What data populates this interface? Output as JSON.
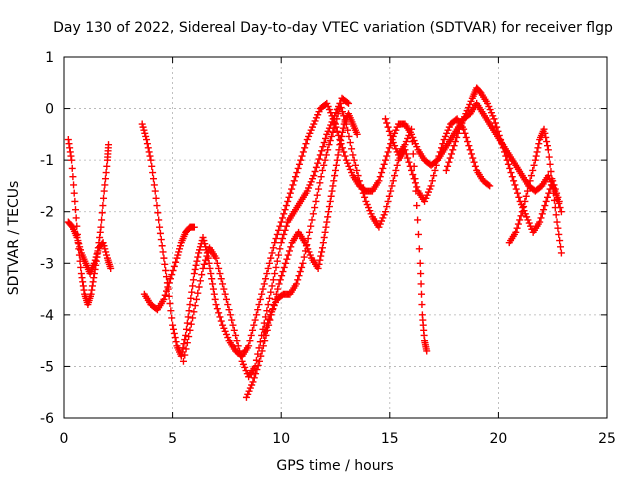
{
  "chart_data": {
    "type": "scatter",
    "title": "Day 130 of 2022, Sidereal Day-to-day VTEC variation (SDTVAR) for receiver flgp",
    "xlabel": "GPS time / hours",
    "ylabel": "SDTVAR / TECUs",
    "xlim": [
      0,
      25
    ],
    "ylim": [
      -6,
      1
    ],
    "xticks": [
      0,
      5,
      10,
      15,
      20,
      25
    ],
    "yticks": [
      -6,
      -5,
      -4,
      -3,
      -2,
      -1,
      0,
      1
    ],
    "grid": true,
    "marker": "plus",
    "series": [
      {
        "name": "trace-1",
        "color": "#ff0000",
        "points": [
          [
            0.2,
            -0.6
          ],
          [
            0.35,
            -1.0
          ],
          [
            0.5,
            -1.8
          ],
          [
            0.65,
            -2.6
          ],
          [
            0.8,
            -3.2
          ],
          [
            0.95,
            -3.6
          ],
          [
            1.1,
            -3.8
          ],
          [
            1.25,
            -3.6
          ],
          [
            1.4,
            -3.2
          ],
          [
            1.55,
            -2.8
          ],
          [
            1.7,
            -2.3
          ],
          [
            1.85,
            -1.6
          ],
          [
            2.0,
            -1.0
          ],
          [
            2.05,
            -0.7
          ]
        ]
      },
      {
        "name": "trace-2",
        "color": "#ff0000",
        "points": [
          [
            0.2,
            -2.2
          ],
          [
            0.4,
            -2.3
          ],
          [
            0.6,
            -2.5
          ],
          [
            0.8,
            -2.8
          ],
          [
            1.0,
            -3.0
          ],
          [
            1.2,
            -3.2
          ],
          [
            1.4,
            -3.0
          ],
          [
            1.6,
            -2.7
          ],
          [
            1.8,
            -2.6
          ],
          [
            2.0,
            -2.9
          ],
          [
            2.15,
            -3.1
          ]
        ]
      },
      {
        "name": "trace-3",
        "color": "#ff0000",
        "points": [
          [
            3.6,
            -0.3
          ],
          [
            3.8,
            -0.6
          ],
          [
            4.0,
            -1.0
          ],
          [
            4.2,
            -1.6
          ],
          [
            4.4,
            -2.3
          ],
          [
            4.6,
            -2.9
          ],
          [
            4.8,
            -3.5
          ],
          [
            5.0,
            -4.2
          ],
          [
            5.2,
            -4.6
          ],
          [
            5.4,
            -4.8
          ],
          [
            5.6,
            -4.4
          ],
          [
            5.8,
            -3.8
          ],
          [
            6.0,
            -3.2
          ],
          [
            6.2,
            -2.8
          ],
          [
            6.4,
            -2.5
          ],
          [
            6.6,
            -2.8
          ],
          [
            6.8,
            -3.3
          ],
          [
            7.0,
            -3.8
          ],
          [
            7.3,
            -4.2
          ],
          [
            7.6,
            -4.5
          ],
          [
            7.9,
            -4.7
          ],
          [
            8.2,
            -4.8
          ],
          [
            8.5,
            -4.6
          ],
          [
            8.8,
            -4.1
          ],
          [
            9.1,
            -3.6
          ],
          [
            9.4,
            -3.1
          ],
          [
            9.7,
            -2.6
          ],
          [
            10.0,
            -2.2
          ],
          [
            10.3,
            -1.8
          ],
          [
            10.6,
            -1.4
          ],
          [
            10.9,
            -1.0
          ],
          [
            11.2,
            -0.6
          ],
          [
            11.5,
            -0.3
          ],
          [
            11.8,
            0.0
          ],
          [
            12.1,
            0.1
          ],
          [
            12.4,
            -0.2
          ],
          [
            12.7,
            -0.6
          ],
          [
            13.0,
            -1.0
          ],
          [
            13.3,
            -1.3
          ],
          [
            13.6,
            -1.5
          ],
          [
            13.9,
            -1.6
          ],
          [
            14.2,
            -1.6
          ],
          [
            14.5,
            -1.4
          ],
          [
            14.8,
            -1.0
          ],
          [
            15.1,
            -0.6
          ],
          [
            15.4,
            -0.3
          ],
          [
            15.7,
            -0.3
          ],
          [
            16.0,
            -0.5
          ],
          [
            16.3,
            -0.8
          ],
          [
            16.6,
            -1.0
          ],
          [
            16.9,
            -1.1
          ],
          [
            17.2,
            -1.0
          ],
          [
            17.5,
            -0.8
          ],
          [
            17.8,
            -0.6
          ],
          [
            18.1,
            -0.4
          ],
          [
            18.4,
            -0.2
          ],
          [
            18.7,
            -0.1
          ],
          [
            19.0,
            0.1
          ],
          [
            19.3,
            -0.1
          ],
          [
            19.6,
            -0.3
          ],
          [
            19.9,
            -0.5
          ],
          [
            20.2,
            -0.7
          ],
          [
            20.5,
            -0.9
          ],
          [
            20.8,
            -1.1
          ],
          [
            21.1,
            -1.3
          ],
          [
            21.4,
            -1.5
          ],
          [
            21.7,
            -1.6
          ],
          [
            22.0,
            -1.5
          ],
          [
            22.3,
            -1.3
          ],
          [
            22.6,
            -1.6
          ],
          [
            22.9,
            -2.0
          ]
        ]
      },
      {
        "name": "trace-4",
        "color": "#ff0000",
        "points": [
          [
            3.7,
            -3.6
          ],
          [
            4.0,
            -3.8
          ],
          [
            4.3,
            -3.9
          ],
          [
            4.6,
            -3.7
          ],
          [
            4.9,
            -3.3
          ],
          [
            5.2,
            -2.9
          ],
          [
            5.4,
            -2.6
          ],
          [
            5.6,
            -2.4
          ],
          [
            5.8,
            -2.3
          ],
          [
            6.0,
            -2.3
          ]
        ]
      },
      {
        "name": "trace-5",
        "color": "#ff0000",
        "points": [
          [
            5.5,
            -4.9
          ],
          [
            5.8,
            -4.3
          ],
          [
            6.1,
            -3.7
          ],
          [
            6.4,
            -3.1
          ],
          [
            6.7,
            -2.7
          ],
          [
            7.0,
            -2.9
          ],
          [
            7.3,
            -3.4
          ],
          [
            7.6,
            -3.9
          ],
          [
            7.9,
            -4.4
          ],
          [
            8.2,
            -4.9
          ],
          [
            8.5,
            -5.2
          ],
          [
            8.8,
            -5.0
          ],
          [
            9.1,
            -4.4
          ],
          [
            9.4,
            -3.8
          ],
          [
            9.7,
            -3.2
          ],
          [
            10.0,
            -2.6
          ],
          [
            10.3,
            -2.2
          ],
          [
            10.6,
            -2.0
          ],
          [
            10.9,
            -1.8
          ],
          [
            11.2,
            -1.6
          ],
          [
            11.5,
            -1.3
          ],
          [
            11.8,
            -0.9
          ],
          [
            12.1,
            -0.5
          ],
          [
            12.4,
            -0.2
          ],
          [
            12.7,
            0.1
          ],
          [
            13.0,
            -0.3
          ],
          [
            13.3,
            -0.9
          ],
          [
            13.6,
            -1.4
          ],
          [
            13.9,
            -1.8
          ],
          [
            14.2,
            -2.1
          ],
          [
            14.5,
            -2.3
          ],
          [
            14.8,
            -2.0
          ],
          [
            15.1,
            -1.5
          ],
          [
            15.4,
            -1.0
          ],
          [
            15.7,
            -0.8
          ],
          [
            16.0,
            -1.2
          ],
          [
            16.3,
            -1.6
          ],
          [
            16.6,
            -1.8
          ],
          [
            16.9,
            -1.5
          ],
          [
            17.2,
            -1.0
          ],
          [
            17.5,
            -0.6
          ],
          [
            17.8,
            -0.3
          ],
          [
            18.1,
            -0.2
          ],
          [
            18.4,
            -0.4
          ],
          [
            18.7,
            -0.8
          ],
          [
            19.0,
            -1.2
          ],
          [
            19.3,
            -1.4
          ],
          [
            19.6,
            -1.5
          ]
        ]
      },
      {
        "name": "trace-6",
        "color": "#ff0000",
        "points": [
          [
            8.4,
            -5.6
          ],
          [
            8.7,
            -5.3
          ],
          [
            9.0,
            -4.9
          ],
          [
            9.3,
            -4.4
          ],
          [
            9.6,
            -3.9
          ],
          [
            9.9,
            -3.4
          ],
          [
            10.2,
            -3.0
          ],
          [
            10.5,
            -2.6
          ],
          [
            10.8,
            -2.4
          ],
          [
            11.1,
            -2.6
          ],
          [
            11.4,
            -2.9
          ],
          [
            11.7,
            -3.1
          ],
          [
            11.9,
            -2.7
          ],
          [
            12.1,
            -2.2
          ],
          [
            12.3,
            -1.7
          ],
          [
            12.5,
            -1.2
          ],
          [
            12.7,
            -0.7
          ],
          [
            12.9,
            -0.3
          ],
          [
            13.1,
            -0.1
          ],
          [
            13.3,
            -0.3
          ],
          [
            13.5,
            -0.5
          ]
        ]
      },
      {
        "name": "trace-7",
        "color": "#ff0000",
        "points": [
          [
            14.8,
            -0.2
          ],
          [
            15.1,
            -0.6
          ],
          [
            15.4,
            -0.9
          ],
          [
            15.7,
            -0.7
          ],
          [
            16.0,
            -0.4
          ],
          [
            16.2,
            -1.6
          ],
          [
            16.4,
            -3.0
          ],
          [
            16.5,
            -4.0
          ],
          [
            16.6,
            -4.5
          ],
          [
            16.7,
            -4.7
          ]
        ]
      },
      {
        "name": "trace-8",
        "color": "#ff0000",
        "points": [
          [
            9.2,
            -4.4
          ],
          [
            9.5,
            -4.0
          ],
          [
            9.8,
            -3.7
          ],
          [
            10.1,
            -3.6
          ],
          [
            10.4,
            -3.6
          ],
          [
            10.7,
            -3.4
          ],
          [
            11.0,
            -3.0
          ],
          [
            11.3,
            -2.4
          ],
          [
            11.6,
            -1.8
          ],
          [
            11.9,
            -1.2
          ],
          [
            12.2,
            -0.7
          ],
          [
            12.5,
            -0.3
          ],
          [
            12.8,
            0.2
          ],
          [
            13.1,
            0.1
          ]
        ]
      },
      {
        "name": "trace-9",
        "color": "#ff0000",
        "points": [
          [
            17.6,
            -1.2
          ],
          [
            17.9,
            -0.8
          ],
          [
            18.2,
            -0.4
          ],
          [
            18.5,
            -0.1
          ],
          [
            18.8,
            0.2
          ],
          [
            19.0,
            0.4
          ],
          [
            19.2,
            0.3
          ],
          [
            19.5,
            0.1
          ],
          [
            19.8,
            -0.2
          ],
          [
            20.1,
            -0.6
          ],
          [
            20.4,
            -1.0
          ],
          [
            20.7,
            -1.4
          ],
          [
            21.0,
            -1.8
          ],
          [
            21.3,
            -2.1
          ],
          [
            21.6,
            -2.4
          ],
          [
            21.9,
            -2.2
          ],
          [
            22.2,
            -1.8
          ],
          [
            22.5,
            -1.4
          ],
          [
            22.8,
            -1.8
          ]
        ]
      },
      {
        "name": "trace-10",
        "color": "#ff0000",
        "points": [
          [
            20.5,
            -2.6
          ],
          [
            20.8,
            -2.4
          ],
          [
            21.1,
            -2.0
          ],
          [
            21.4,
            -1.5
          ],
          [
            21.7,
            -1.0
          ],
          [
            21.9,
            -0.6
          ],
          [
            22.1,
            -0.4
          ],
          [
            22.3,
            -0.8
          ],
          [
            22.5,
            -1.5
          ],
          [
            22.7,
            -2.2
          ],
          [
            22.9,
            -2.8
          ]
        ]
      }
    ]
  }
}
